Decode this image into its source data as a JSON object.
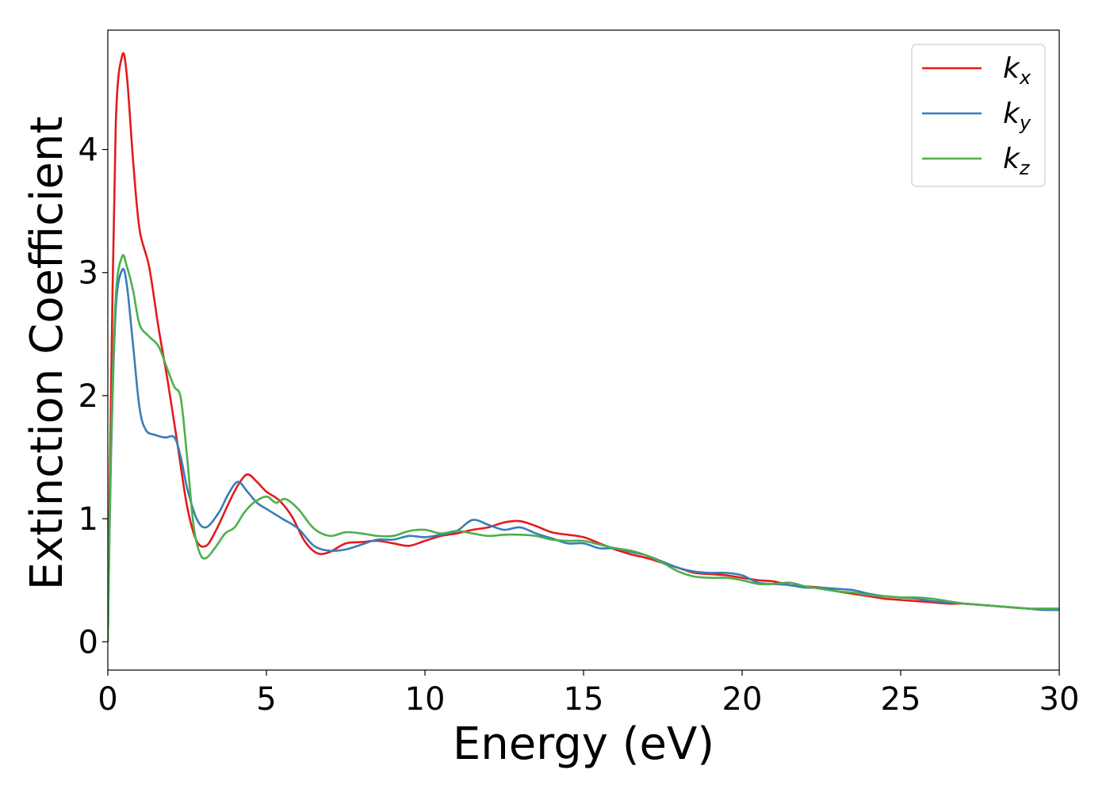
{
  "chart_data": {
    "type": "line",
    "title": "",
    "xlabel": "Energy (eV)",
    "ylabel": "Extinction Coefficient",
    "xlim": [
      0,
      30
    ],
    "ylim": [
      -0.23,
      4.97
    ],
    "xticks": [
      0,
      5,
      10,
      15,
      20,
      25,
      30
    ],
    "yticks": [
      0,
      1,
      2,
      3,
      4
    ],
    "grid": false,
    "legend_position": "top-right",
    "series": [
      {
        "name": "k",
        "subscript": "x",
        "color": "#e41a1c",
        "points": [
          [
            0,
            0
          ],
          [
            0.1,
            2.0
          ],
          [
            0.25,
            4.2
          ],
          [
            0.45,
            4.76
          ],
          [
            0.6,
            4.6
          ],
          [
            0.8,
            3.9
          ],
          [
            1.0,
            3.35
          ],
          [
            1.3,
            3.05
          ],
          [
            1.6,
            2.55
          ],
          [
            1.9,
            2.1
          ],
          [
            2.2,
            1.6
          ],
          [
            2.5,
            1.1
          ],
          [
            2.8,
            0.82
          ],
          [
            3.1,
            0.78
          ],
          [
            3.4,
            0.9
          ],
          [
            3.8,
            1.12
          ],
          [
            4.1,
            1.27
          ],
          [
            4.4,
            1.36
          ],
          [
            4.7,
            1.3
          ],
          [
            5.0,
            1.22
          ],
          [
            5.4,
            1.15
          ],
          [
            5.8,
            1.02
          ],
          [
            6.2,
            0.82
          ],
          [
            6.6,
            0.72
          ],
          [
            7.0,
            0.73
          ],
          [
            7.5,
            0.8
          ],
          [
            8.0,
            0.81
          ],
          [
            8.5,
            0.82
          ],
          [
            9.0,
            0.8
          ],
          [
            9.5,
            0.78
          ],
          [
            10.0,
            0.82
          ],
          [
            10.5,
            0.86
          ],
          [
            11.0,
            0.88
          ],
          [
            11.5,
            0.91
          ],
          [
            12.0,
            0.93
          ],
          [
            12.5,
            0.97
          ],
          [
            13.0,
            0.98
          ],
          [
            13.5,
            0.94
          ],
          [
            14.0,
            0.89
          ],
          [
            14.5,
            0.87
          ],
          [
            15.0,
            0.85
          ],
          [
            15.5,
            0.8
          ],
          [
            16.0,
            0.75
          ],
          [
            16.5,
            0.71
          ],
          [
            17.0,
            0.68
          ],
          [
            17.5,
            0.64
          ],
          [
            18.0,
            0.6
          ],
          [
            18.5,
            0.56
          ],
          [
            19.0,
            0.55
          ],
          [
            19.5,
            0.54
          ],
          [
            20.0,
            0.52
          ],
          [
            20.5,
            0.5
          ],
          [
            21.0,
            0.49
          ],
          [
            21.5,
            0.46
          ],
          [
            22.0,
            0.45
          ],
          [
            22.5,
            0.44
          ],
          [
            23.0,
            0.41
          ],
          [
            23.5,
            0.39
          ],
          [
            24.0,
            0.37
          ],
          [
            24.5,
            0.35
          ],
          [
            25.0,
            0.34
          ],
          [
            25.5,
            0.33
          ],
          [
            26.0,
            0.32
          ],
          [
            26.5,
            0.31
          ],
          [
            27.0,
            0.31
          ],
          [
            27.5,
            0.3
          ],
          [
            28.0,
            0.29
          ],
          [
            28.5,
            0.28
          ],
          [
            29.0,
            0.27
          ],
          [
            29.5,
            0.26
          ],
          [
            30.0,
            0.26
          ]
        ]
      },
      {
        "name": "k",
        "subscript": "y",
        "color": "#377eb8",
        "points": [
          [
            0,
            0
          ],
          [
            0.1,
            1.5
          ],
          [
            0.25,
            2.7
          ],
          [
            0.45,
            3.02
          ],
          [
            0.6,
            2.9
          ],
          [
            0.8,
            2.4
          ],
          [
            1.0,
            1.9
          ],
          [
            1.2,
            1.72
          ],
          [
            1.5,
            1.68
          ],
          [
            1.8,
            1.66
          ],
          [
            2.1,
            1.66
          ],
          [
            2.3,
            1.5
          ],
          [
            2.5,
            1.25
          ],
          [
            2.8,
            1.0
          ],
          [
            3.1,
            0.93
          ],
          [
            3.5,
            1.05
          ],
          [
            3.8,
            1.2
          ],
          [
            4.1,
            1.3
          ],
          [
            4.4,
            1.22
          ],
          [
            4.7,
            1.13
          ],
          [
            5.0,
            1.08
          ],
          [
            5.5,
            1.0
          ],
          [
            6.0,
            0.92
          ],
          [
            6.5,
            0.78
          ],
          [
            7.0,
            0.74
          ],
          [
            7.5,
            0.75
          ],
          [
            8.0,
            0.79
          ],
          [
            8.5,
            0.83
          ],
          [
            9.0,
            0.83
          ],
          [
            9.5,
            0.86
          ],
          [
            10.0,
            0.85
          ],
          [
            10.5,
            0.87
          ],
          [
            11.0,
            0.9
          ],
          [
            11.5,
            0.99
          ],
          [
            12.0,
            0.95
          ],
          [
            12.5,
            0.91
          ],
          [
            13.0,
            0.93
          ],
          [
            13.5,
            0.88
          ],
          [
            14.0,
            0.84
          ],
          [
            14.5,
            0.8
          ],
          [
            15.0,
            0.8
          ],
          [
            15.5,
            0.76
          ],
          [
            16.0,
            0.76
          ],
          [
            16.5,
            0.73
          ],
          [
            17.0,
            0.7
          ],
          [
            17.5,
            0.65
          ],
          [
            18.0,
            0.6
          ],
          [
            18.5,
            0.57
          ],
          [
            19.0,
            0.56
          ],
          [
            19.5,
            0.56
          ],
          [
            20.0,
            0.54
          ],
          [
            20.5,
            0.48
          ],
          [
            21.0,
            0.47
          ],
          [
            21.5,
            0.46
          ],
          [
            22.0,
            0.44
          ],
          [
            22.5,
            0.44
          ],
          [
            23.0,
            0.43
          ],
          [
            23.5,
            0.42
          ],
          [
            24.0,
            0.39
          ],
          [
            24.5,
            0.37
          ],
          [
            25.0,
            0.36
          ],
          [
            25.5,
            0.35
          ],
          [
            26.0,
            0.33
          ],
          [
            26.5,
            0.32
          ],
          [
            27.0,
            0.31
          ],
          [
            27.5,
            0.3
          ],
          [
            28.0,
            0.29
          ],
          [
            28.5,
            0.28
          ],
          [
            29.0,
            0.27
          ],
          [
            29.5,
            0.26
          ],
          [
            30.0,
            0.26
          ]
        ]
      },
      {
        "name": "k",
        "subscript": "z",
        "color": "#4daf4a",
        "points": [
          [
            0,
            0
          ],
          [
            0.1,
            1.6
          ],
          [
            0.25,
            2.8
          ],
          [
            0.45,
            3.13
          ],
          [
            0.6,
            3.05
          ],
          [
            0.8,
            2.85
          ],
          [
            1.0,
            2.58
          ],
          [
            1.3,
            2.48
          ],
          [
            1.6,
            2.4
          ],
          [
            1.9,
            2.2
          ],
          [
            2.1,
            2.07
          ],
          [
            2.3,
            1.98
          ],
          [
            2.5,
            1.5
          ],
          [
            2.7,
            0.95
          ],
          [
            2.9,
            0.72
          ],
          [
            3.1,
            0.68
          ],
          [
            3.4,
            0.77
          ],
          [
            3.7,
            0.88
          ],
          [
            4.0,
            0.93
          ],
          [
            4.3,
            1.05
          ],
          [
            4.6,
            1.13
          ],
          [
            5.0,
            1.18
          ],
          [
            5.3,
            1.13
          ],
          [
            5.6,
            1.16
          ],
          [
            6.0,
            1.08
          ],
          [
            6.5,
            0.92
          ],
          [
            7.0,
            0.86
          ],
          [
            7.5,
            0.89
          ],
          [
            8.0,
            0.88
          ],
          [
            8.5,
            0.86
          ],
          [
            9.0,
            0.86
          ],
          [
            9.5,
            0.9
          ],
          [
            10.0,
            0.91
          ],
          [
            10.5,
            0.88
          ],
          [
            11.0,
            0.9
          ],
          [
            11.5,
            0.88
          ],
          [
            12.0,
            0.86
          ],
          [
            12.5,
            0.87
          ],
          [
            13.0,
            0.87
          ],
          [
            13.5,
            0.86
          ],
          [
            14.0,
            0.83
          ],
          [
            14.5,
            0.82
          ],
          [
            15.0,
            0.82
          ],
          [
            15.5,
            0.79
          ],
          [
            16.0,
            0.76
          ],
          [
            16.5,
            0.74
          ],
          [
            17.0,
            0.7
          ],
          [
            17.5,
            0.64
          ],
          [
            18.0,
            0.57
          ],
          [
            18.5,
            0.53
          ],
          [
            19.0,
            0.52
          ],
          [
            19.5,
            0.52
          ],
          [
            20.0,
            0.5
          ],
          [
            20.5,
            0.47
          ],
          [
            21.0,
            0.47
          ],
          [
            21.5,
            0.48
          ],
          [
            22.0,
            0.45
          ],
          [
            22.5,
            0.43
          ],
          [
            23.0,
            0.41
          ],
          [
            23.5,
            0.4
          ],
          [
            24.0,
            0.38
          ],
          [
            24.5,
            0.37
          ],
          [
            25.0,
            0.36
          ],
          [
            25.5,
            0.36
          ],
          [
            26.0,
            0.35
          ],
          [
            26.5,
            0.33
          ],
          [
            27.0,
            0.31
          ],
          [
            27.5,
            0.3
          ],
          [
            28.0,
            0.29
          ],
          [
            28.5,
            0.28
          ],
          [
            29.0,
            0.27
          ],
          [
            29.5,
            0.27
          ],
          [
            30.0,
            0.27
          ]
        ]
      }
    ]
  }
}
